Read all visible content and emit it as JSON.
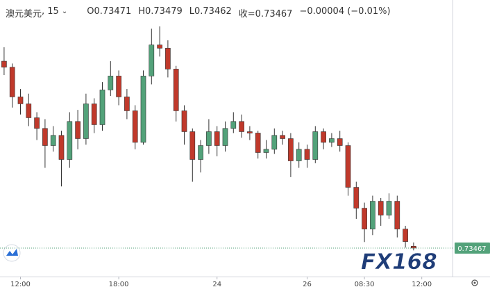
{
  "chart_data": {
    "type": "candlestick",
    "symbol": "澳元美元",
    "interval": "15",
    "legend_items": [
      "O0.73471",
      "H0.73479",
      "L0.73462",
      "收=0.73467",
      "−0.00004 (−0.01%)"
    ],
    "up_color": "#53a27a",
    "down_color": "#c0392b",
    "open": [
      0.7387,
      0.73857,
      0.73793,
      0.73778,
      0.73748,
      0.73725,
      0.73688,
      0.7371,
      0.73658,
      0.7374,
      0.73703,
      0.73778,
      0.73733,
      0.73808,
      0.73838,
      0.73793,
      0.73763,
      0.73695,
      0.73838,
      0.73905,
      0.73898,
      0.73853,
      0.73763,
      0.73718,
      0.73658,
      0.73688,
      0.73718,
      0.73688,
      0.73725,
      0.7374,
      0.73718,
      0.73715,
      0.73673,
      0.7368,
      0.7371,
      0.73703,
      0.73655,
      0.7368,
      0.73658,
      0.73718,
      0.73695,
      0.73703,
      0.73688,
      0.73598,
      0.73553,
      0.73508,
      0.73568,
      0.73538,
      0.73568,
      0.73508,
      0.73471
    ],
    "high": [
      0.739,
      0.73865,
      0.7381,
      0.738,
      0.7376,
      0.73745,
      0.7373,
      0.7372,
      0.7376,
      0.73765,
      0.738,
      0.7379,
      0.73825,
      0.7387,
      0.7385,
      0.7381,
      0.73775,
      0.7385,
      0.7394,
      0.73945,
      0.73915,
      0.7386,
      0.73775,
      0.73725,
      0.737,
      0.73745,
      0.7373,
      0.7374,
      0.7376,
      0.73755,
      0.7373,
      0.7372,
      0.737,
      0.73725,
      0.7372,
      0.73715,
      0.73695,
      0.7369,
      0.7373,
      0.73725,
      0.73715,
      0.7372,
      0.73695,
      0.7361,
      0.73565,
      0.7358,
      0.73575,
      0.73585,
      0.7358,
      0.73515,
      0.73479
    ],
    "low": [
      0.7384,
      0.7377,
      0.73755,
      0.7373,
      0.737,
      0.7364,
      0.73675,
      0.736,
      0.7364,
      0.7368,
      0.7369,
      0.73715,
      0.7372,
      0.73795,
      0.73775,
      0.73745,
      0.7368,
      0.7369,
      0.7382,
      0.7388,
      0.73835,
      0.7374,
      0.7369,
      0.7361,
      0.7363,
      0.7367,
      0.73665,
      0.73675,
      0.73715,
      0.73705,
      0.737,
      0.7366,
      0.7366,
      0.7367,
      0.7369,
      0.7362,
      0.7364,
      0.7364,
      0.7365,
      0.7368,
      0.73685,
      0.73675,
      0.7358,
      0.7353,
      0.7348,
      0.73495,
      0.73515,
      0.7353,
      0.7349,
      0.73468,
      0.73462
    ],
    "close": [
      0.73857,
      0.73793,
      0.73778,
      0.73748,
      0.73725,
      0.73688,
      0.7371,
      0.73658,
      0.7374,
      0.73703,
      0.73778,
      0.73733,
      0.73808,
      0.73838,
      0.73793,
      0.73763,
      0.73695,
      0.73838,
      0.73905,
      0.73898,
      0.73853,
      0.73763,
      0.73718,
      0.73658,
      0.73688,
      0.73718,
      0.73688,
      0.73725,
      0.7374,
      0.73718,
      0.73715,
      0.73673,
      0.7368,
      0.7371,
      0.73703,
      0.73655,
      0.7368,
      0.73658,
      0.73718,
      0.73695,
      0.73703,
      0.73688,
      0.73598,
      0.73553,
      0.73508,
      0.73568,
      0.73538,
      0.73568,
      0.73508,
      0.73481,
      0.73467
    ],
    "xlim": [
      -0.5,
      54.5
    ],
    "xticks": [
      {
        "value": 2,
        "label": "12:00"
      },
      {
        "value": 14,
        "label": "18:00"
      },
      {
        "value": 26,
        "label": "24"
      },
      {
        "value": 37,
        "label": "26"
      },
      {
        "value": 44,
        "label": "08:30"
      },
      {
        "value": 51,
        "label": "12:00"
      }
    ],
    "ylim": [
      0.7341,
      0.7396
    ],
    "last_price": 0.73467,
    "watermark": "FX168"
  }
}
